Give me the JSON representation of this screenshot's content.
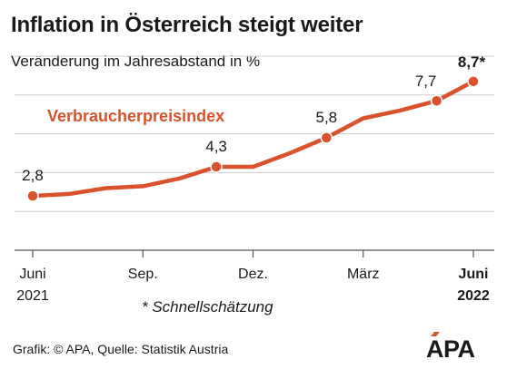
{
  "title": "Inflation in Österreich steigt weiter",
  "subtitle": "Veränderung im Jahresabstand in %",
  "footnote": "* Schnellschätzung",
  "source": "Grafik: © APA, Quelle: Statistik Austria",
  "logo_text": "APA",
  "colors": {
    "series": "#d9522b",
    "grid": "#cccccc",
    "axis": "#555555",
    "text": "#1a1a1a"
  },
  "chart_data": {
    "type": "line",
    "series": [
      {
        "name": "Verbraucherpreisindex",
        "color": "#d9522b",
        "x": [
          "2021-06",
          "2021-07",
          "2021-08",
          "2021-09",
          "2021-10",
          "2021-11",
          "2021-12",
          "2022-01",
          "2022-02",
          "2022-03",
          "2022-04",
          "2022-05",
          "2022-06"
        ],
        "values": [
          2.8,
          2.9,
          3.2,
          3.3,
          3.7,
          4.3,
          4.3,
          5.0,
          5.8,
          6.8,
          7.2,
          7.7,
          8.7
        ]
      }
    ],
    "data_labels": [
      {
        "x": "2021-06",
        "text": "2,8",
        "bold": false
      },
      {
        "x": "2021-11",
        "text": "4,3",
        "bold": false
      },
      {
        "x": "2022-02",
        "text": "5,8",
        "bold": false
      },
      {
        "x": "2022-05",
        "text": "7,7",
        "bold": false
      },
      {
        "x": "2022-06",
        "text": "8,7*",
        "bold": true
      }
    ],
    "x_ticks": [
      {
        "x": "2021-06",
        "line1": "Juni",
        "line2": "2021",
        "bold": false
      },
      {
        "x": "2021-09",
        "line1": "Sep.",
        "line2": "",
        "bold": false
      },
      {
        "x": "2021-12",
        "line1": "Dez.",
        "line2": "",
        "bold": false
      },
      {
        "x": "2022-03",
        "line1": "März",
        "line2": "",
        "bold": false
      },
      {
        "x": "2022-06",
        "line1": "Juni",
        "line2": "2022",
        "bold": true
      }
    ],
    "markers_at": [
      "2021-06",
      "2021-11",
      "2022-02",
      "2022-05",
      "2022-06"
    ],
    "ylim": [
      0,
      10
    ],
    "y_gridlines": [
      0,
      2,
      4,
      6,
      8,
      10
    ],
    "grid": true,
    "y_tick_labels": false,
    "legend": "inline-left"
  }
}
